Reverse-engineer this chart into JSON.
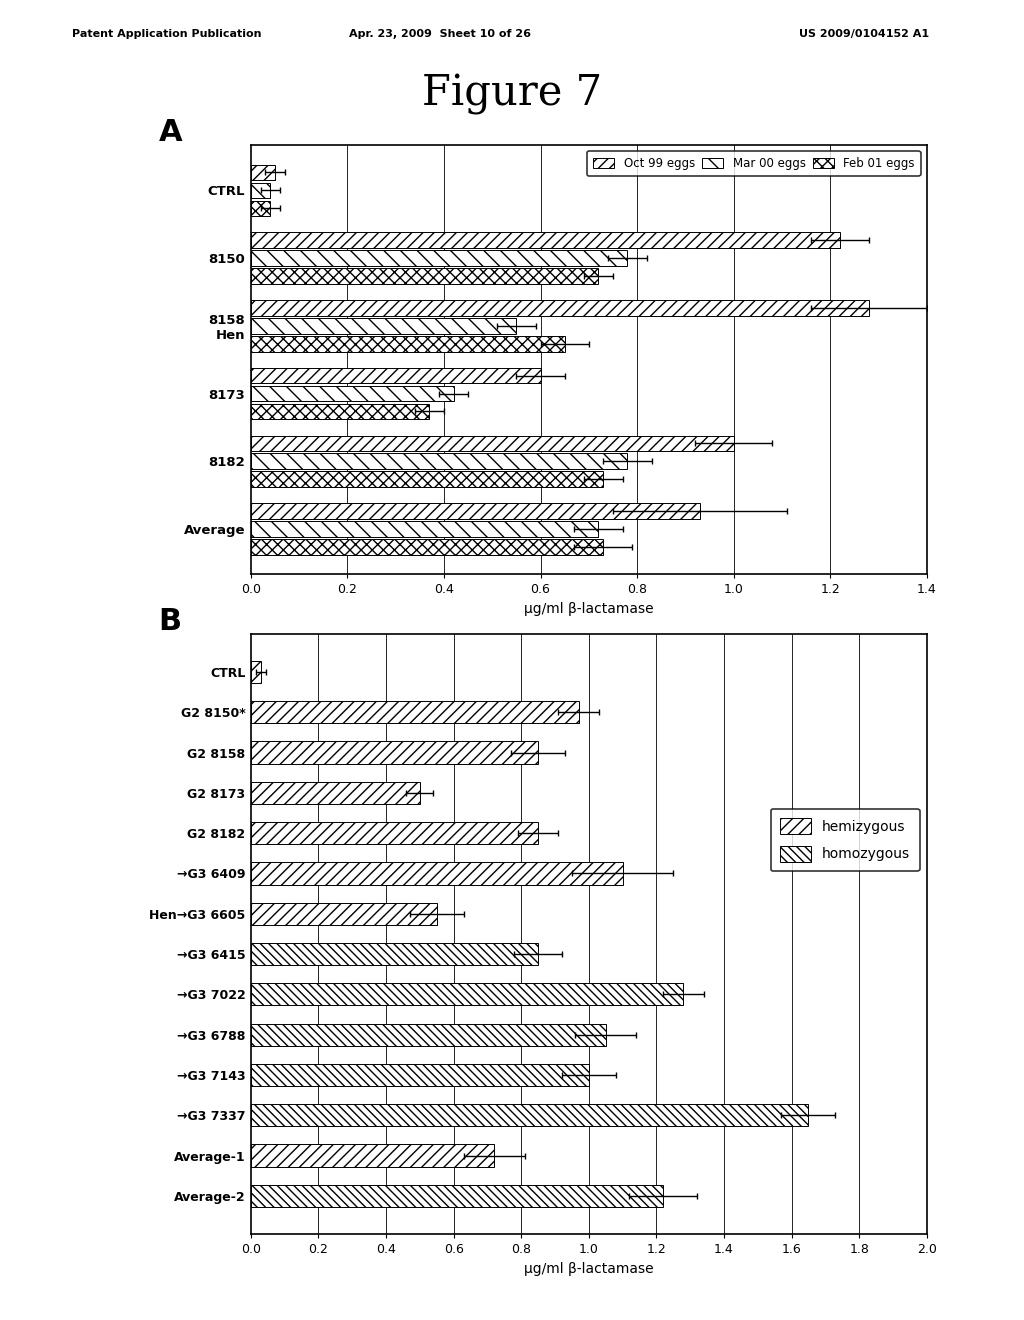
{
  "title": "Figure 7",
  "header_left": "Patent Application Publication",
  "header_mid": "Apr. 23, 2009  Sheet 10 of 26",
  "header_right": "US 2009/0104152 A1",
  "panel_A": {
    "label": "A",
    "categories": [
      "CTRL",
      "8150",
      "8158\nHen",
      "8173",
      "8182",
      "Average"
    ],
    "series": [
      {
        "name": "Oct 99 eggs",
        "values": [
          0.05,
          1.22,
          1.28,
          0.6,
          1.0,
          0.93
        ],
        "errors": [
          0.02,
          0.06,
          0.12,
          0.05,
          0.08,
          0.18
        ],
        "hatch": "///",
        "facecolor": "white",
        "edgecolor": "black",
        "linewidth": 0.7
      },
      {
        "name": "Mar 00 eggs",
        "values": [
          0.04,
          0.78,
          0.55,
          0.42,
          0.78,
          0.72
        ],
        "errors": [
          0.02,
          0.04,
          0.04,
          0.03,
          0.05,
          0.05
        ],
        "hatch": "\\\\",
        "facecolor": "white",
        "edgecolor": "black",
        "linewidth": 0.7
      },
      {
        "name": "Feb 01 eggs",
        "values": [
          0.04,
          0.72,
          0.65,
          0.37,
          0.73,
          0.73
        ],
        "errors": [
          0.02,
          0.03,
          0.05,
          0.03,
          0.04,
          0.06
        ],
        "hatch": "xxx",
        "facecolor": "white",
        "edgecolor": "black",
        "linewidth": 0.7
      }
    ],
    "xlabel": "μg/ml β-lactamase",
    "xlim": [
      0.0,
      1.4
    ],
    "xticks": [
      0.0,
      0.2,
      0.4,
      0.6,
      0.8,
      1.0,
      1.2,
      1.4
    ]
  },
  "panel_B": {
    "label": "B",
    "categories": [
      "CTRL",
      "G2 8150*",
      "G2 8158",
      "G2 8173",
      "G2 8182",
      "→G3 6409",
      "Hen→G3 6605",
      "→G3 6415",
      "→G3 7022",
      "→G3 6788",
      "→G3 7143",
      "→G3 7337",
      "Average-1",
      "Average-2"
    ],
    "cat_types": [
      "hemi",
      "hemi",
      "hemi",
      "hemi",
      "hemi",
      "hemi",
      "hemi",
      "homo",
      "homo",
      "homo",
      "homo",
      "homo",
      "hemi",
      "homo"
    ],
    "hemizygous_values": [
      0.03,
      0.97,
      0.85,
      0.5,
      0.85,
      1.1,
      0.55,
      null,
      null,
      null,
      null,
      null,
      0.72,
      null
    ],
    "hemizygous_errors": [
      0.015,
      0.06,
      0.08,
      0.04,
      0.06,
      0.15,
      0.08,
      null,
      null,
      null,
      null,
      null,
      0.09,
      null
    ],
    "homozygous_values": [
      null,
      null,
      null,
      null,
      null,
      null,
      null,
      0.85,
      1.28,
      1.05,
      1.0,
      1.65,
      null,
      1.22
    ],
    "homozygous_errors": [
      null,
      null,
      null,
      null,
      null,
      null,
      null,
      0.07,
      0.06,
      0.09,
      0.08,
      0.08,
      null,
      0.1
    ],
    "xlabel": "μg/ml β-lactamase",
    "xlim": [
      0.0,
      2.0
    ],
    "xticks": [
      0.0,
      0.2,
      0.4,
      0.6,
      0.8,
      1.0,
      1.2,
      1.4,
      1.6,
      1.8,
      2.0
    ],
    "hemi_hatch": "///",
    "homo_hatch": "\\\\\\\\",
    "hemi_name": "hemizygous",
    "homo_name": "homozygous"
  }
}
